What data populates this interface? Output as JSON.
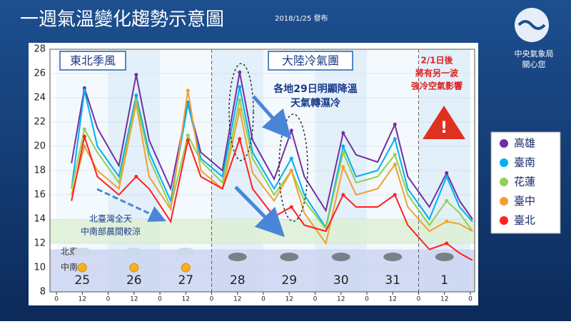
{
  "header": {
    "title": "一週氣溫變化趨勢示意圖",
    "date": "2018/1/25 發布",
    "org": [
      "中央氣象局",
      "關心您"
    ]
  },
  "chart_data": {
    "type": "line",
    "x": [
      7,
      13,
      19,
      29,
      37,
      43,
      53,
      61,
      67,
      77,
      85,
      91,
      101,
      109,
      115,
      125,
      133,
      139,
      149,
      157,
      163,
      173,
      181,
      187,
      193
    ],
    "series": [
      {
        "name": "高雄",
        "color": "#7030a0",
        "values": [
          18.6,
          24.8,
          21.5,
          18.4,
          25.9,
          20.5,
          16.5,
          23.6,
          19.5,
          18.0,
          26.1,
          20.5,
          17.3,
          21.3,
          17.5,
          14.7,
          21.1,
          19.3,
          18.7,
          21.8,
          17.5,
          15.0,
          17.8,
          15.5,
          14.0
        ]
      },
      {
        "name": "臺南",
        "color": "#00b0f0",
        "values": [
          16.5,
          24.6,
          20.0,
          17.5,
          24.2,
          19.5,
          15.5,
          23.5,
          19.0,
          17.5,
          24.9,
          19.5,
          16.5,
          19.0,
          16.0,
          13.3,
          20.0,
          17.5,
          18.0,
          20.6,
          16.5,
          14.0,
          17.5,
          15.0,
          13.8
        ]
      },
      {
        "name": "花蓮",
        "color": "#92d050",
        "values": [
          16.5,
          21.4,
          19.5,
          17.0,
          23.8,
          19.0,
          15.0,
          20.9,
          18.8,
          17.0,
          23.8,
          19.0,
          16.0,
          18.0,
          15.5,
          13.2,
          19.5,
          17.0,
          17.5,
          19.3,
          16.0,
          13.5,
          15.5,
          14.5,
          13.0
        ]
      },
      {
        "name": "臺中",
        "color": "#f0a030",
        "values": [
          16.0,
          20.0,
          18.0,
          16.5,
          23.5,
          17.5,
          14.8,
          24.6,
          18.0,
          16.5,
          23.0,
          17.8,
          15.5,
          18.0,
          14.5,
          12.0,
          18.3,
          16.0,
          16.5,
          18.5,
          15.0,
          13.0,
          13.8,
          13.6,
          13.0
        ]
      },
      {
        "name": "臺北",
        "color": "#ff2020",
        "values": [
          15.5,
          20.8,
          17.5,
          16.0,
          17.5,
          16.5,
          13.8,
          20.5,
          17.5,
          16.5,
          20.6,
          16.5,
          14.2,
          15.0,
          13.5,
          13.0,
          16.0,
          15.0,
          15.0,
          16.0,
          13.5,
          11.5,
          12.0,
          11.2,
          10.6
        ]
      }
    ],
    "xlim": [
      -3,
      194
    ],
    "ylim": [
      8,
      28
    ],
    "yticks": [
      8,
      10,
      12,
      14,
      16,
      18,
      20,
      22,
      24,
      26,
      28
    ],
    "xticks": [
      0,
      12,
      {
        "value": 24,
        "label": "0"
      },
      {
        "value": 36,
        "label": "12"
      },
      {
        "value": 48,
        "label": "0"
      },
      {
        "value": 60,
        "label": "12"
      },
      {
        "value": 72,
        "label": "0"
      },
      {
        "value": 84,
        "label": "12"
      },
      {
        "value": 96,
        "label": "0"
      },
      {
        "value": 108,
        "label": "12"
      },
      {
        "value": 120,
        "label": "0"
      },
      {
        "value": 132,
        "label": "12"
      },
      {
        "value": 144,
        "label": "0"
      },
      {
        "value": 156,
        "label": "12"
      },
      {
        "value": 168,
        "label": "0"
      },
      {
        "value": 180,
        "label": "12"
      },
      {
        "value": 192,
        "label": "0"
      }
    ],
    "day_labels": [
      "25",
      "26",
      "27",
      "28",
      "29",
      "30",
      "31",
      "1"
    ],
    "row_labels": [
      "北東",
      "中南"
    ],
    "annotations": {
      "monsoon": "東北季風",
      "cold_air": "大陸冷氣團",
      "drop": [
        "各地29日明顯降溫",
        "天氣轉濕冷"
      ],
      "next": [
        "2/1日後",
        "將有另一波",
        "強冷空氣影響"
      ],
      "north": [
        "北臺灣全天",
        "中南部晨間較涼"
      ]
    }
  }
}
